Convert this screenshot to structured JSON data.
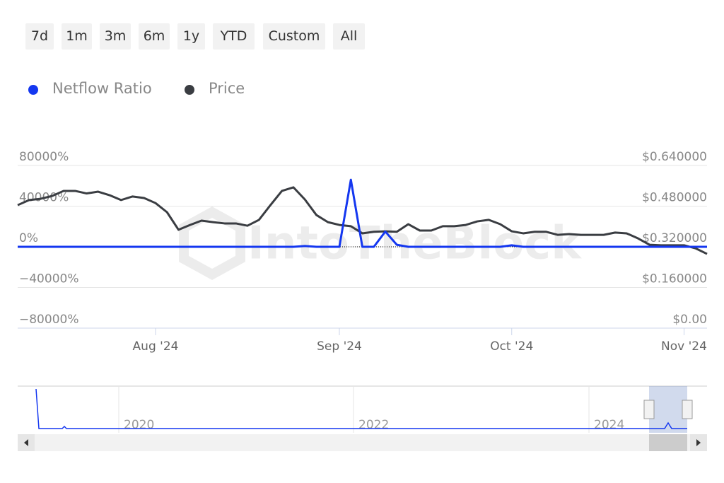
{
  "range_buttons": [
    "7d",
    "1m",
    "3m",
    "6m",
    "1y",
    "YTD",
    "Custom",
    "All"
  ],
  "watermark": "IntoTheBlock",
  "navigator": {
    "labels": [
      "2020",
      "2022",
      "2024"
    ]
  },
  "chart_data": {
    "type": "line",
    "categories": [
      null,
      null,
      null,
      null,
      null,
      null,
      null,
      null,
      null,
      null,
      null,
      null,
      "Aug '24",
      null,
      null,
      null,
      null,
      null,
      null,
      null,
      null,
      null,
      null,
      null,
      null,
      null,
      null,
      null,
      "Sep '24",
      null,
      null,
      null,
      null,
      null,
      null,
      null,
      null,
      null,
      null,
      null,
      null,
      null,
      null,
      "Oct '24",
      null,
      null,
      null,
      null,
      null,
      null,
      null,
      null,
      null,
      null,
      null,
      null,
      null,
      null,
      "Nov '24",
      null,
      null
    ],
    "series": [
      {
        "name": "Netflow Ratio",
        "color": "#1437f0",
        "axis": "y",
        "values": [
          0,
          0,
          0,
          0,
          0,
          0,
          0,
          0,
          0,
          0,
          0,
          0,
          0,
          0,
          0,
          0,
          0,
          0,
          0,
          0,
          0,
          0,
          0,
          0,
          0,
          800,
          0,
          0,
          0,
          66000,
          0,
          0,
          15000,
          2000,
          0,
          0,
          0,
          0,
          0,
          0,
          0,
          0,
          0,
          1500,
          0,
          0,
          0,
          0,
          0,
          0,
          0,
          0,
          0,
          0,
          0,
          0,
          0,
          0,
          0,
          0,
          0
        ]
      },
      {
        "name": "Price",
        "color": "#3a3d42",
        "axis": "y2",
        "values": [
          0.484,
          0.504,
          0.509,
          0.52,
          0.54,
          0.54,
          0.53,
          0.537,
          0.523,
          0.504,
          0.518,
          0.512,
          0.492,
          0.456,
          0.387,
          0.406,
          0.423,
          0.417,
          0.412,
          0.412,
          0.403,
          0.426,
          0.484,
          0.54,
          0.554,
          0.506,
          0.445,
          0.417,
          0.406,
          0.401,
          0.373,
          0.379,
          0.381,
          0.379,
          0.409,
          0.384,
          0.384,
          0.401,
          0.401,
          0.406,
          0.42,
          0.426,
          0.409,
          0.381,
          0.373,
          0.379,
          0.379,
          0.367,
          0.37,
          0.367,
          0.367,
          0.367,
          0.376,
          0.373,
          0.353,
          0.328,
          0.326,
          0.326,
          0.326,
          0.314,
          0.292
        ]
      }
    ],
    "ylim": [
      -80000,
      80000
    ],
    "yticks": [
      {
        "value": 80000,
        "label": "80000%"
      },
      {
        "value": 40000,
        "label": "40000%"
      },
      {
        "value": 0,
        "label": "0%"
      },
      {
        "value": -40000,
        "label": "−40000%"
      },
      {
        "value": -80000,
        "label": "−80000%"
      }
    ],
    "y2lim": [
      0,
      0.64
    ],
    "y2ticks": [
      {
        "value": 0.64,
        "label": "$0.640000"
      },
      {
        "value": 0.48,
        "label": "$0.480000"
      },
      {
        "value": 0.32,
        "label": "$0.320000"
      },
      {
        "value": 0.16,
        "label": "$0.160000"
      },
      {
        "value": 0,
        "label": "$0.00"
      }
    ],
    "grid": true,
    "legend": "top-left"
  }
}
